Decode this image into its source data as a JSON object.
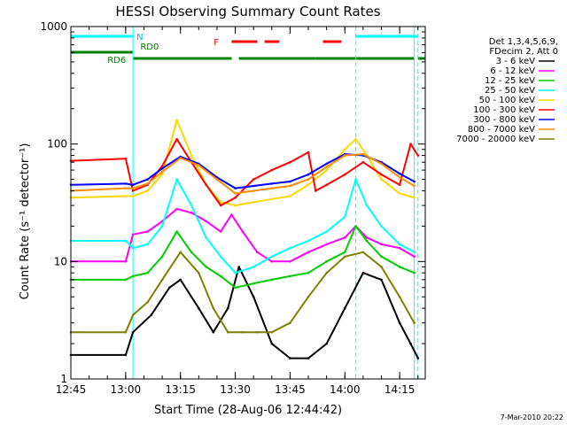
{
  "chart_data": {
    "type": "line",
    "title": "HESSI Observing Summary Count Rates",
    "xlabel": "Start Time (28-Aug-06 12:44:42)",
    "ylabel": "Count Rate (s⁻¹ detector⁻¹)",
    "y_scale": "log",
    "ylim": [
      1,
      1000
    ],
    "xlim": [
      "12:45",
      "14:22"
    ],
    "x_ticks": [
      "12:45",
      "13:00",
      "13:15",
      "13:30",
      "13:45",
      "14:00",
      "14:15"
    ],
    "y_ticks": [
      "1",
      "10",
      "100",
      "1000"
    ],
    "legend": {
      "placement": "right",
      "header": [
        "Det 1,3,4,5,6,9,",
        "FDecim 2, Att 0"
      ]
    },
    "flag_labels": {
      "night": "N",
      "saa": "RD6",
      "rd0": "RD0",
      "flare": "F"
    },
    "night_intervals": [
      [
        "12:45",
        "13:02"
      ],
      [
        "14:03",
        "14:20"
      ]
    ],
    "night_lines": [
      "13:02",
      "14:03",
      "14:19",
      "14:20"
    ],
    "rd6_intervals": [
      [
        "12:45",
        "13:02"
      ]
    ],
    "rd0_intervals": [
      [
        "13:02",
        "13:29"
      ],
      [
        "13:31",
        "13:52"
      ],
      [
        "13:52",
        "14:19"
      ],
      [
        "14:20",
        "14:22"
      ]
    ],
    "flare_intervals": [
      [
        "13:29",
        "13:31"
      ],
      [
        "13:31",
        "13:36"
      ],
      [
        "13:38",
        "13:42"
      ],
      [
        "13:54",
        "13:59"
      ]
    ],
    "series": [
      {
        "name": "3 - 6 keV",
        "color": "#000000",
        "x": [
          "12:45",
          "13:00",
          "13:02",
          "13:07",
          "13:12",
          "13:15",
          "13:20",
          "13:24",
          "13:28",
          "13:31",
          "13:35",
          "13:40",
          "13:45",
          "13:50",
          "13:55",
          "14:00",
          "14:05",
          "14:10",
          "14:15",
          "14:18",
          "14:20"
        ],
        "values": [
          1.6,
          1.6,
          2.5,
          3.5,
          6,
          7,
          4,
          2.5,
          4,
          9,
          5,
          2,
          1.5,
          1.5,
          2,
          4,
          8,
          7,
          3,
          2,
          1.5
        ]
      },
      {
        "name": "6 - 12 keV",
        "color": "#ff00ff",
        "x": [
          "12:45",
          "13:00",
          "13:02",
          "13:06",
          "13:10",
          "13:14",
          "13:18",
          "13:22",
          "13:26",
          "13:29",
          "13:32",
          "13:36",
          "13:40",
          "13:45",
          "13:50",
          "13:55",
          "14:00",
          "14:03",
          "14:06",
          "14:10",
          "14:15",
          "14:19"
        ],
        "values": [
          10,
          10,
          17,
          18,
          22,
          28,
          26,
          22,
          18,
          25,
          18,
          12,
          10,
          10,
          12,
          14,
          16,
          20,
          16,
          14,
          13,
          11
        ]
      },
      {
        "name": "12 - 25 keV",
        "color": "#00cc00",
        "x": [
          "12:45",
          "13:00",
          "13:02",
          "13:06",
          "13:10",
          "13:14",
          "13:18",
          "13:22",
          "13:26",
          "13:30",
          "13:35",
          "13:40",
          "13:45",
          "13:50",
          "13:55",
          "14:00",
          "14:03",
          "14:06",
          "14:10",
          "14:15",
          "14:19"
        ],
        "values": [
          7,
          7,
          7.5,
          8,
          11,
          18,
          12,
          9,
          7.5,
          6,
          6.5,
          7,
          7.5,
          8,
          10,
          12,
          20,
          15,
          11,
          9,
          8
        ]
      },
      {
        "name": "25 - 50 keV",
        "color": "#00ffff",
        "x": [
          "12:45",
          "13:00",
          "13:02",
          "13:06",
          "13:10",
          "13:14",
          "13:18",
          "13:22",
          "13:26",
          "13:30",
          "13:35",
          "13:40",
          "13:45",
          "13:50",
          "13:55",
          "14:00",
          "14:03",
          "14:06",
          "14:10",
          "14:15",
          "14:19"
        ],
        "values": [
          15,
          15,
          13,
          14,
          20,
          50,
          30,
          16,
          11,
          8,
          9,
          11,
          13,
          15,
          18,
          24,
          50,
          30,
          20,
          14,
          12
        ]
      },
      {
        "name": "50 - 100 keV",
        "color": "#ffd700",
        "x": [
          "12:45",
          "13:00",
          "13:02",
          "13:06",
          "13:10",
          "13:14",
          "13:18",
          "13:22",
          "13:26",
          "13:30",
          "13:35",
          "13:40",
          "13:45",
          "13:50",
          "13:55",
          "14:00",
          "14:03",
          "14:06",
          "14:10",
          "14:15",
          "14:19"
        ],
        "values": [
          35,
          36,
          36,
          40,
          55,
          160,
          80,
          45,
          32,
          30,
          32,
          34,
          36,
          45,
          60,
          90,
          110,
          80,
          50,
          38,
          35
        ]
      },
      {
        "name": "100 - 300 keV",
        "color": "#ff0000",
        "x": [
          "12:45",
          "13:00",
          "13:02",
          "13:06",
          "13:10",
          "13:14",
          "13:18",
          "13:22",
          "13:26",
          "13:30",
          "13:35",
          "13:40",
          "13:45",
          "13:50",
          "13:52",
          "13:55",
          "14:00",
          "14:05",
          "14:10",
          "14:15",
          "14:18",
          "14:20"
        ],
        "values": [
          72,
          75,
          40,
          45,
          65,
          110,
          70,
          45,
          30,
          35,
          50,
          60,
          70,
          85,
          40,
          45,
          55,
          70,
          55,
          45,
          100,
          80
        ]
      },
      {
        "name": "300 - 800 keV",
        "color": "#0000ff",
        "x": [
          "12:45",
          "13:00",
          "13:02",
          "13:06",
          "13:10",
          "13:15",
          "13:20",
          "13:25",
          "13:30",
          "13:35",
          "13:40",
          "13:45",
          "13:50",
          "13:55",
          "14:00",
          "14:05",
          "14:10",
          "14:15",
          "14:19"
        ],
        "values": [
          45,
          46,
          45,
          50,
          62,
          78,
          68,
          52,
          42,
          44,
          46,
          48,
          55,
          68,
          82,
          80,
          70,
          56,
          48
        ]
      },
      {
        "name": "800 - 7000 keV",
        "color": "#ff8c00",
        "x": [
          "12:45",
          "13:00",
          "13:02",
          "13:06",
          "13:10",
          "13:15",
          "13:20",
          "13:25",
          "13:30",
          "13:35",
          "13:40",
          "13:45",
          "13:50",
          "13:55",
          "14:00",
          "14:05",
          "14:10",
          "14:15",
          "14:19"
        ],
        "values": [
          40,
          42,
          42,
          46,
          58,
          76,
          66,
          50,
          38,
          40,
          42,
          44,
          50,
          64,
          80,
          82,
          68,
          52,
          44
        ]
      },
      {
        "name": "7000 - 20000 keV",
        "color": "#808000",
        "x": [
          "12:45",
          "13:00",
          "13:02",
          "13:06",
          "13:10",
          "13:15",
          "13:20",
          "13:24",
          "13:28",
          "13:32",
          "13:36",
          "13:40",
          "13:45",
          "13:50",
          "13:55",
          "14:00",
          "14:05",
          "14:10",
          "14:15",
          "14:19"
        ],
        "values": [
          2.5,
          2.5,
          3.5,
          4.5,
          7,
          12,
          8,
          4,
          2.5,
          2.5,
          2.5,
          2.5,
          3,
          5,
          8,
          11,
          12,
          9,
          5,
          3
        ]
      }
    ],
    "footer_date": "7-Mar-2010 20:22"
  }
}
